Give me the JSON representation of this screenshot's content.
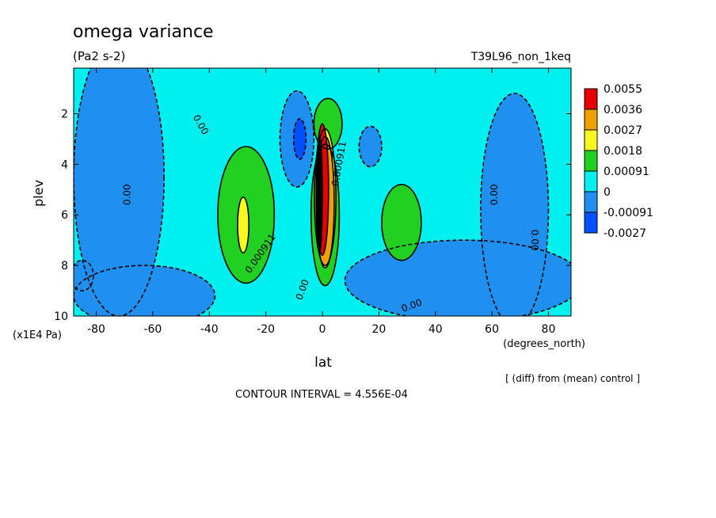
{
  "chart_data": {
    "type": "heatmap",
    "title": "omega variance",
    "units": "(Pa2 s-2)",
    "run_label": "T39L96_non_1keq",
    "xlabel": "lat",
    "x_units": "(degrees_north)",
    "ylabel": "plev",
    "y_units": "(x1E4 Pa)",
    "xlim": [
      -88,
      88
    ],
    "ylim": [
      10,
      0.2
    ],
    "x_ticks": [
      -80,
      -60,
      -40,
      -20,
      0,
      20,
      40,
      60,
      80
    ],
    "x_tick_labels": [
      "-80",
      "-60",
      "-40",
      "-20",
      "0",
      "20",
      "40",
      "60",
      "80"
    ],
    "y_ticks": [
      2,
      4,
      6,
      8,
      10
    ],
    "y_tick_labels": [
      "2",
      "4",
      "6",
      "8",
      "10"
    ],
    "colorbar": {
      "levels": [
        "0.0055",
        "0.0036",
        "0.0027",
        "0.0018",
        "0.00091",
        "0",
        "-0.00091",
        "-0.0027"
      ],
      "colors": [
        "#e60000",
        "#f0a000",
        "#f8f820",
        "#22d022",
        "#00f0f0",
        "#1f8ff0",
        "#0050ff"
      ]
    },
    "background_color": "#00f0f0",
    "regions": [
      {
        "level": "-0.00091",
        "color": "#1f8ff0",
        "center": [
          -72,
          4.5
        ],
        "rx": 16,
        "ry": 5.5
      },
      {
        "level": "-0.00091",
        "color": "#1f8ff0",
        "center": [
          -63,
          9.2
        ],
        "rx": 25,
        "ry": 1.2
      },
      {
        "level": "-0.00091",
        "color": "#1f8ff0",
        "center": [
          -9,
          3.0
        ],
        "rx": 6,
        "ry": 1.9
      },
      {
        "level": "-0.00091",
        "color": "#1f8ff0",
        "center": [
          17,
          3.3
        ],
        "rx": 4,
        "ry": 0.8
      },
      {
        "level": "-0.00091",
        "color": "#1f8ff0",
        "center": [
          68,
          5.8
        ],
        "rx": 12,
        "ry": 4.6
      },
      {
        "level": "-0.00091",
        "color": "#1f8ff0",
        "center": [
          50,
          8.6
        ],
        "rx": 42,
        "ry": 1.6
      },
      {
        "level": "-0.00091",
        "color": "#1f8ff0",
        "center": [
          -85,
          8.4
        ],
        "rx": 4,
        "ry": 0.6
      },
      {
        "level": "-0.0027",
        "color": "#0050ff",
        "center": [
          -8,
          3.0
        ],
        "rx": 2.2,
        "ry": 0.8
      },
      {
        "level": "0.00091",
        "color": "#22d022",
        "center": [
          -27,
          6.0
        ],
        "rx": 10,
        "ry": 2.7
      },
      {
        "level": "0.00091",
        "color": "#22d022",
        "center": [
          28,
          6.3
        ],
        "rx": 7,
        "ry": 1.5
      },
      {
        "level": "0.00091",
        "color": "#22d022",
        "center": [
          2,
          2.4
        ],
        "rx": 5,
        "ry": 1.0
      },
      {
        "level": "0.00091",
        "color": "#22d022",
        "center": [
          1,
          6.0
        ],
        "rx": 5,
        "ry": 2.8
      },
      {
        "level": "0.0018",
        "color": "#f8f820",
        "center": [
          -28,
          6.4
        ],
        "rx": 2,
        "ry": 1.1
      },
      {
        "level": "0.0018",
        "color": "#f8f820",
        "center": [
          1,
          5.3
        ],
        "rx": 3.8,
        "ry": 2.7
      },
      {
        "level": "0.0027",
        "color": "#f0a000",
        "center": [
          1,
          5.5
        ],
        "rx": 3.2,
        "ry": 2.6
      },
      {
        "level": "0.0036",
        "color": "#e60000",
        "center": [
          0,
          5.0
        ],
        "rx": 2.2,
        "ry": 2.6
      },
      {
        "level": "0.0055",
        "color": "#000000",
        "center": [
          -1,
          5.2
        ],
        "rx": 1.0,
        "ry": 2.3
      }
    ],
    "contour_labels": [
      {
        "text": "0.00",
        "x": -44,
        "y": 2.5,
        "rotate": 60
      },
      {
        "text": "0.00",
        "x": -68,
        "y": 5.2,
        "rotate": -90
      },
      {
        "text": "0.000911",
        "x": -21,
        "y": 7.6,
        "rotate": -55
      },
      {
        "text": "0.00",
        "x": -6,
        "y": 9.0,
        "rotate": -70
      },
      {
        "text": "0.000911",
        "x": 7,
        "y": 4.0,
        "rotate": -80
      },
      {
        "text": "0.00",
        "x": 32,
        "y": 9.7,
        "rotate": -20
      },
      {
        "text": "0.00",
        "x": 62,
        "y": 5.2,
        "rotate": -90
      },
      {
        "text": "0.00",
        "x": 74,
        "y": 7.0,
        "rotate": 90
      }
    ],
    "grid": false,
    "legend": "right"
  },
  "footer": {
    "diff_note": "[ (diff) from (mean) control ]",
    "contour_interval": "CONTOUR INTERVAL = 4.556E-04"
  }
}
